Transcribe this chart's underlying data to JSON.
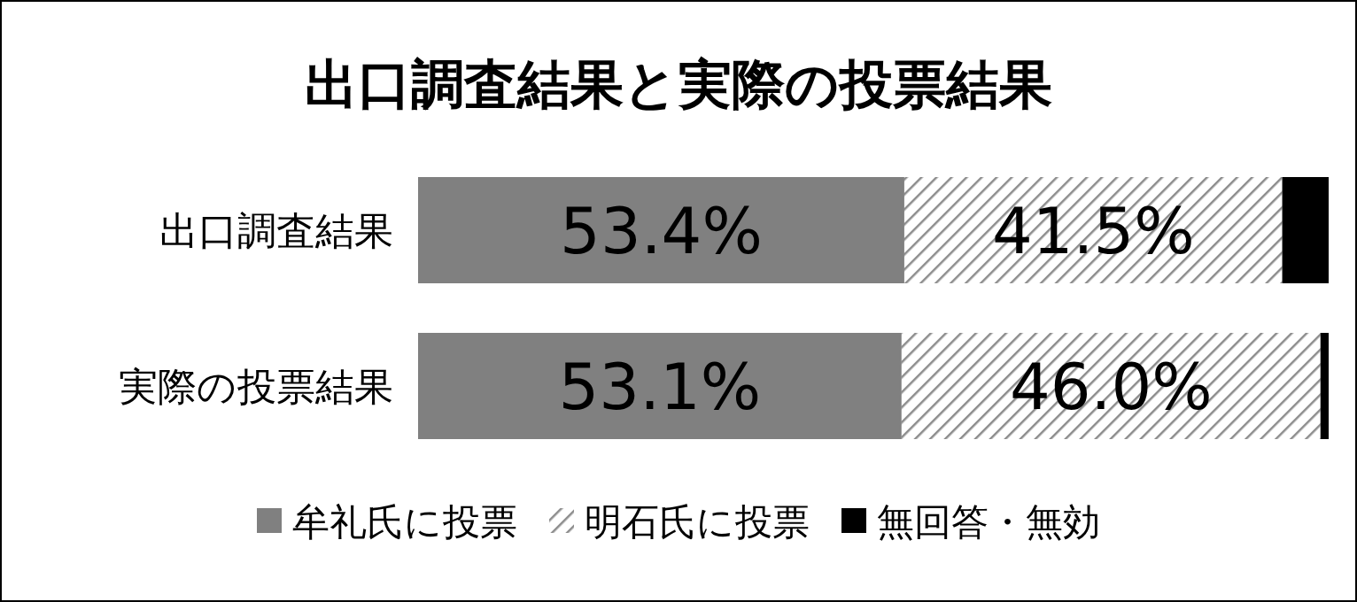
{
  "chart_data": {
    "type": "bar",
    "orientation": "horizontal",
    "stacked": true,
    "title": "出口調査結果と実際の投票結果",
    "categories": [
      "出口調査結果",
      "実際の投票結果"
    ],
    "xlim": [
      0,
      100
    ],
    "tick_labels": "y",
    "legend": "bottom",
    "series": [
      {
        "name": "牟礼氏に投票",
        "color": "#808080",
        "values": [
          53.4,
          53.1
        ],
        "value_labels": [
          "53.4%",
          "53.1%"
        ]
      },
      {
        "name": "明石氏に投票",
        "color": "#8c8c8c",
        "values": [
          41.5,
          46.0
        ],
        "value_labels": [
          "41.5%",
          "46.0%"
        ]
      },
      {
        "name": "無回答・無効",
        "color": "#000000",
        "values": [
          5.1,
          0.9
        ],
        "value_labels": [
          null,
          null
        ]
      }
    ]
  }
}
